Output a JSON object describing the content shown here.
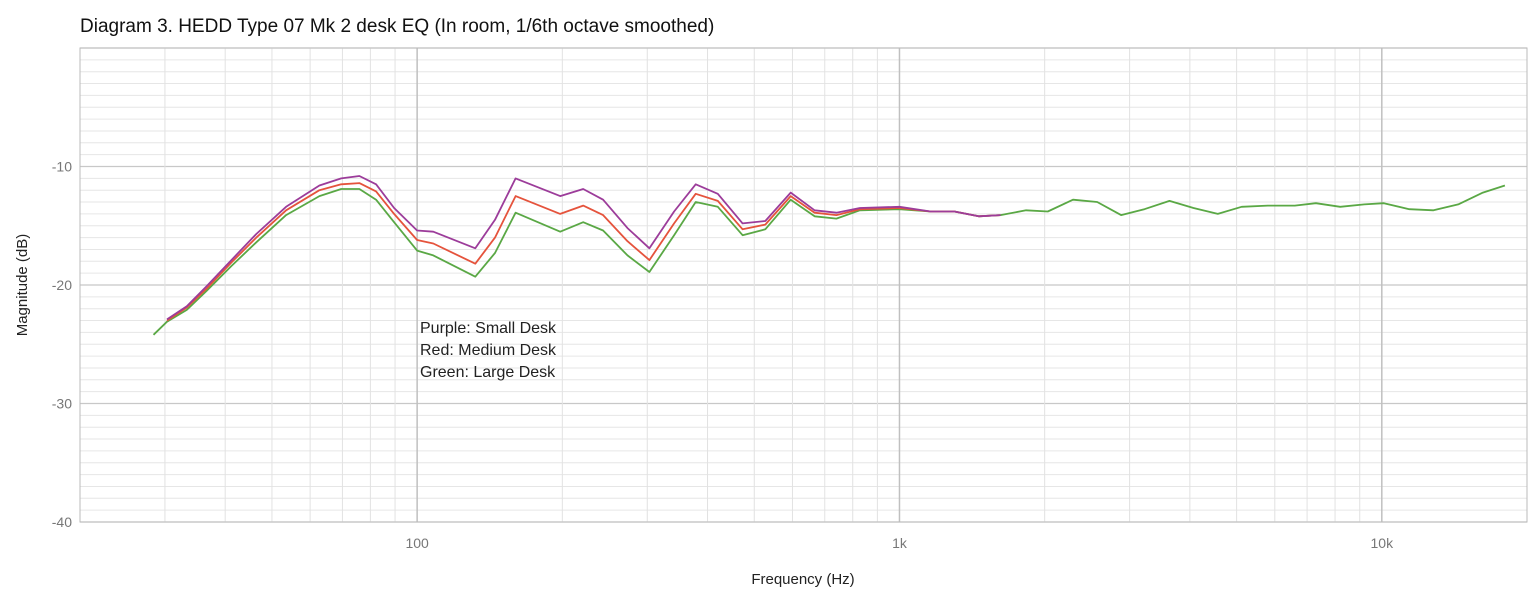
{
  "chart_data": {
    "type": "line",
    "title": "Diagram 3. HEDD Type 07 Mk 2 desk EQ (In room, 1/6th octave smoothed)",
    "xlabel": "Frequency (Hz)",
    "ylabel": "Magnitude (dB)",
    "xscale": "log",
    "xlim": [
      20,
      20000
    ],
    "ylim": [
      -40,
      0
    ],
    "xticks": [
      {
        "value": 100,
        "label": "100"
      },
      {
        "value": 1000,
        "label": "1k"
      },
      {
        "value": 10000,
        "label": "10k"
      }
    ],
    "yticks": [
      {
        "value": -10,
        "label": "-10"
      },
      {
        "value": -20,
        "label": "-20"
      },
      {
        "value": -30,
        "label": "-30"
      },
      {
        "value": -40,
        "label": "-40"
      }
    ],
    "grid": true,
    "annotation": [
      "Purple: Small Desk",
      "Red: Medium Desk",
      "Green: Large Desk"
    ],
    "series": [
      {
        "color": "#5aa845",
        "x": [
          28.4,
          30.3,
          33.3,
          36.6,
          41.2,
          46.4,
          53.5,
          62.7,
          69.6,
          75.9,
          82.2,
          89.6,
          100,
          108,
          132,
          145,
          160,
          198,
          221,
          243,
          273,
          303,
          341,
          378,
          420,
          473,
          527,
          595,
          667,
          740,
          828,
          1000,
          1160,
          1300,
          1460,
          1620,
          1830,
          2030,
          2290,
          2570,
          2880,
          3220,
          3630,
          4070,
          4570,
          5120,
          5800,
          6600,
          7300,
          8200,
          9200,
          10100,
          11400,
          12800,
          14400,
          16200,
          18000
        ],
        "y": [
          -24.2,
          -23.1,
          -22.1,
          -20.5,
          -18.4,
          -16.4,
          -14.1,
          -12.5,
          -11.9,
          -11.9,
          -12.8,
          -14.7,
          -17.1,
          -17.5,
          -19.3,
          -17.3,
          -13.9,
          -15.5,
          -14.7,
          -15.4,
          -17.5,
          -18.9,
          -15.8,
          -13.0,
          -13.4,
          -15.8,
          -15.3,
          -12.8,
          -14.2,
          -14.4,
          -13.7,
          -13.6,
          -13.8,
          -13.8,
          -14.2,
          -14.1,
          -13.7,
          -13.8,
          -12.8,
          -13.0,
          -14.1,
          -13.6,
          -12.9,
          -13.5,
          -14.0,
          -13.4,
          -13.3,
          -13.3,
          -13.1,
          -13.4,
          -13.2,
          -13.1,
          -13.6,
          -13.7,
          -13.2,
          -12.2,
          -11.6
        ]
      },
      {
        "color": "#e5533c",
        "x": [
          30.3,
          33.3,
          36.6,
          41.2,
          46.4,
          53.5,
          62.7,
          69.6,
          75.9,
          82.2,
          89.6,
          100,
          108,
          132,
          145,
          160,
          198,
          221,
          243,
          273,
          303,
          341,
          378,
          420,
          473,
          527,
          595,
          667,
          740,
          828,
          1000,
          1160,
          1300,
          1460,
          1620
        ],
        "y": [
          -23.0,
          -21.9,
          -20.3,
          -18.1,
          -16.0,
          -13.7,
          -12.0,
          -11.5,
          -11.4,
          -12.1,
          -14.0,
          -16.2,
          -16.5,
          -18.2,
          -16.0,
          -12.5,
          -14.0,
          -13.3,
          -14.1,
          -16.3,
          -17.9,
          -14.8,
          -12.3,
          -12.9,
          -15.3,
          -14.9,
          -12.5,
          -13.9,
          -14.1,
          -13.6,
          -13.5,
          -13.8,
          -13.8,
          -14.2,
          -14.1
        ]
      },
      {
        "color": "#9c3c9a",
        "x": [
          30.3,
          33.3,
          36.6,
          41.2,
          46.4,
          53.5,
          62.7,
          69.6,
          75.9,
          82.2,
          89.6,
          100,
          108,
          132,
          145,
          160,
          198,
          221,
          243,
          273,
          303,
          341,
          378,
          420,
          473,
          527,
          595,
          667,
          740,
          828,
          1000,
          1160,
          1300,
          1460,
          1620
        ],
        "y": [
          -22.9,
          -21.8,
          -20.1,
          -17.9,
          -15.7,
          -13.4,
          -11.6,
          -11.0,
          -10.8,
          -11.5,
          -13.5,
          -15.4,
          -15.5,
          -16.9,
          -14.5,
          -11.0,
          -12.5,
          -11.9,
          -12.8,
          -15.2,
          -16.9,
          -13.8,
          -11.5,
          -12.3,
          -14.8,
          -14.6,
          -12.2,
          -13.7,
          -13.9,
          -13.5,
          -13.4,
          -13.8,
          -13.8,
          -14.2,
          -14.1
        ]
      }
    ]
  }
}
